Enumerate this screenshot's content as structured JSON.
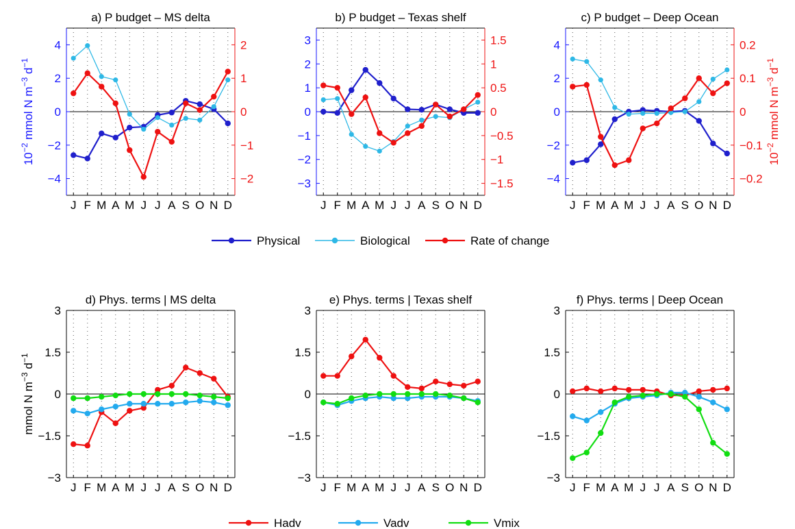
{
  "figure": {
    "months": [
      "J",
      "F",
      "M",
      "A",
      "M",
      "J",
      "J",
      "A",
      "S",
      "O",
      "N",
      "D"
    ],
    "colors": {
      "physical": "#1f1fcc",
      "biological": "#2eb8e6",
      "rate": "#ee1111",
      "hadv": "#ee1111",
      "vadv": "#22aaee",
      "vmix": "#11dd11",
      "left_axis_top": "#1515ff",
      "right_axis_top": "#ee1111",
      "axis_bottom": "#000000"
    },
    "top_legend": {
      "items": [
        {
          "key": "physical",
          "label": "Physical"
        },
        {
          "key": "biological",
          "label": "Biological"
        },
        {
          "key": "rate",
          "label": "Rate of change"
        }
      ]
    },
    "bottom_legend": {
      "items": [
        {
          "key": "hadv",
          "label": "Hadv"
        },
        {
          "key": "vadv",
          "label": "Vadv"
        },
        {
          "key": "vmix",
          "label": "Vmix"
        }
      ]
    }
  },
  "chart_data": [
    {
      "type": "line",
      "title": "a) P budget – MS delta",
      "ylabel": "10<sup>-2</sup> mmol N m<sup>-3</sup> d<sup>-1</sup>",
      "ylabel_parts": [
        "10",
        "−2",
        " mmol N m",
        "−3",
        " d",
        "−1"
      ],
      "ylim": [
        -5,
        5
      ],
      "yticks": [
        "−4",
        "−2",
        "0",
        "2",
        "4"
      ],
      "yticks_values": [
        -4,
        -2,
        0,
        2,
        4
      ],
      "y2lim": [
        -2.5,
        2.5
      ],
      "y2ticks": [
        "−2",
        "−1",
        "0",
        "1",
        "2"
      ],
      "y2ticks_values": [
        -2,
        -1,
        0,
        1,
        2
      ],
      "grid": "vertical dotted",
      "series": [
        {
          "name": "Physical",
          "axis": "left",
          "values": [
            -2.6,
            -2.8,
            -1.3,
            -1.55,
            -0.95,
            -0.9,
            -0.2,
            -0.05,
            0.65,
            0.45,
            0.15,
            -0.7
          ]
        },
        {
          "name": "Biological",
          "axis": "left",
          "values": [
            3.2,
            3.95,
            2.1,
            1.9,
            -0.15,
            -1.05,
            -0.35,
            -0.8,
            -0.4,
            -0.5,
            0.3,
            1.9
          ]
        },
        {
          "name": "Rate of change",
          "axis": "right",
          "values": [
            0.55,
            1.15,
            0.75,
            0.25,
            -1.15,
            -1.95,
            -0.6,
            -0.9,
            0.25,
            0.05,
            0.45,
            1.2
          ]
        }
      ]
    },
    {
      "type": "line",
      "title": "b) P budget – Texas shelf",
      "ylim": [
        -3.5,
        3.5
      ],
      "yticks": [
        "−3",
        "−2",
        "−1",
        "0",
        "1",
        "2",
        "3"
      ],
      "yticks_values": [
        -3,
        -2,
        -1,
        0,
        1,
        2,
        3
      ],
      "y2lim": [
        -1.75,
        1.75
      ],
      "y2ticks": [
        "−1.5",
        "−1",
        "−0.5",
        "0",
        "0.5",
        "1",
        "1.5"
      ],
      "y2ticks_values": [
        -1.5,
        -1,
        -0.5,
        0,
        0.5,
        1,
        1.5
      ],
      "grid": "vertical dotted",
      "series": [
        {
          "name": "Physical",
          "axis": "left",
          "values": [
            0.0,
            -0.05,
            0.9,
            1.75,
            1.2,
            0.55,
            0.1,
            0.08,
            0.3,
            0.1,
            -0.05,
            -0.05
          ]
        },
        {
          "name": "Biological",
          "axis": "left",
          "values": [
            0.5,
            0.55,
            -0.95,
            -1.45,
            -1.65,
            -1.25,
            -0.6,
            -0.35,
            -0.2,
            -0.25,
            0.1,
            0.4
          ]
        },
        {
          "name": "Rate of change",
          "axis": "right",
          "values": [
            0.55,
            0.5,
            -0.05,
            0.3,
            -0.45,
            -0.65,
            -0.45,
            -0.3,
            0.15,
            -0.1,
            0.05,
            0.35
          ]
        }
      ]
    },
    {
      "type": "line",
      "title": "c) P budget – Deep Ocean",
      "y2label_parts": [
        "10",
        "−2",
        " mmol N m",
        "−3",
        " d",
        "−1"
      ],
      "ylim": [
        -5,
        5
      ],
      "yticks": [
        "−4",
        "−2",
        "0",
        "2",
        "4"
      ],
      "yticks_values": [
        -4,
        -2,
        0,
        2,
        4
      ],
      "y2lim": [
        -0.25,
        0.25
      ],
      "y2ticks": [
        "−0.2",
        "−0.1",
        "0",
        "0.1",
        "0.2"
      ],
      "y2ticks_values": [
        -0.2,
        -0.1,
        0,
        0.1,
        0.2
      ],
      "grid": "vertical dotted",
      "series": [
        {
          "name": "Physical",
          "axis": "left",
          "values": [
            -3.05,
            -2.9,
            -1.95,
            -0.45,
            0.0,
            0.1,
            0.05,
            0.0,
            0.05,
            -0.55,
            -1.9,
            -2.5
          ]
        },
        {
          "name": "Biological",
          "axis": "left",
          "values": [
            3.15,
            3.0,
            1.9,
            0.25,
            -0.15,
            -0.1,
            -0.1,
            -0.05,
            0.0,
            0.6,
            1.95,
            2.5
          ]
        },
        {
          "name": "Rate of change",
          "axis": "right",
          "values": [
            0.075,
            0.08,
            -0.075,
            -0.16,
            -0.145,
            -0.05,
            -0.035,
            0.01,
            0.04,
            0.1,
            0.055,
            0.085
          ]
        }
      ]
    },
    {
      "type": "line",
      "title": "d) Phys. terms | MS delta",
      "ylabel_parts": [
        "mmol N m",
        "−3",
        " d",
        "−1"
      ],
      "ylim": [
        -3,
        3
      ],
      "yticks": [
        "−3",
        "−1.5",
        "0",
        "1.5",
        "3"
      ],
      "yticks_values": [
        -3,
        -1.5,
        0,
        1.5,
        3
      ],
      "grid": "vertical dotted",
      "series": [
        {
          "name": "Hadv",
          "values": [
            -1.8,
            -1.85,
            -0.65,
            -1.05,
            -0.6,
            -0.5,
            0.15,
            0.3,
            0.95,
            0.75,
            0.55,
            -0.1
          ]
        },
        {
          "name": "Vadv",
          "values": [
            -0.6,
            -0.7,
            -0.55,
            -0.45,
            -0.35,
            -0.35,
            -0.35,
            -0.35,
            -0.3,
            -0.25,
            -0.3,
            -0.4
          ]
        },
        {
          "name": "Vmix",
          "values": [
            -0.15,
            -0.15,
            -0.1,
            -0.05,
            0.0,
            0.0,
            0.0,
            0.0,
            0.0,
            -0.05,
            -0.1,
            -0.15
          ]
        }
      ]
    },
    {
      "type": "line",
      "title": "e) Phys. terms | Texas shelf",
      "ylim": [
        -3,
        3
      ],
      "yticks": [
        "−3",
        "−1.5",
        "0",
        "1.5",
        "3"
      ],
      "yticks_values": [
        -3,
        -1.5,
        0,
        1.5,
        3
      ],
      "grid": "vertical dotted",
      "series": [
        {
          "name": "Hadv",
          "values": [
            0.65,
            0.65,
            1.35,
            1.95,
            1.3,
            0.65,
            0.25,
            0.2,
            0.45,
            0.35,
            0.3,
            0.45
          ]
        },
        {
          "name": "Vadv",
          "values": [
            -0.3,
            -0.4,
            -0.25,
            -0.15,
            -0.1,
            -0.15,
            -0.15,
            -0.1,
            -0.1,
            -0.1,
            -0.15,
            -0.25
          ]
        },
        {
          "name": "Vmix",
          "values": [
            -0.3,
            -0.35,
            -0.15,
            -0.05,
            0.0,
            0.0,
            0.0,
            0.0,
            0.0,
            -0.05,
            -0.15,
            -0.3
          ]
        }
      ]
    },
    {
      "type": "line",
      "title": "f) Phys. terms | Deep Ocean",
      "ylim": [
        -3,
        3
      ],
      "yticks": [
        "−3",
        "−1.5",
        "0",
        "1.5",
        "3"
      ],
      "yticks_values": [
        -3,
        -1.5,
        0,
        1.5,
        3
      ],
      "grid": "vertical dotted",
      "series": [
        {
          "name": "Hadv",
          "values": [
            0.1,
            0.2,
            0.1,
            0.2,
            0.15,
            0.15,
            0.1,
            -0.05,
            -0.05,
            0.1,
            0.15,
            0.2
          ]
        },
        {
          "name": "Vadv",
          "values": [
            -0.8,
            -0.95,
            -0.65,
            -0.35,
            -0.15,
            -0.1,
            -0.05,
            0.05,
            0.05,
            -0.1,
            -0.3,
            -0.55
          ]
        },
        {
          "name": "Vmix",
          "values": [
            -2.3,
            -2.1,
            -1.4,
            -0.3,
            -0.1,
            -0.05,
            0.0,
            0.0,
            -0.1,
            -0.55,
            -1.75,
            -2.15
          ]
        }
      ]
    }
  ]
}
